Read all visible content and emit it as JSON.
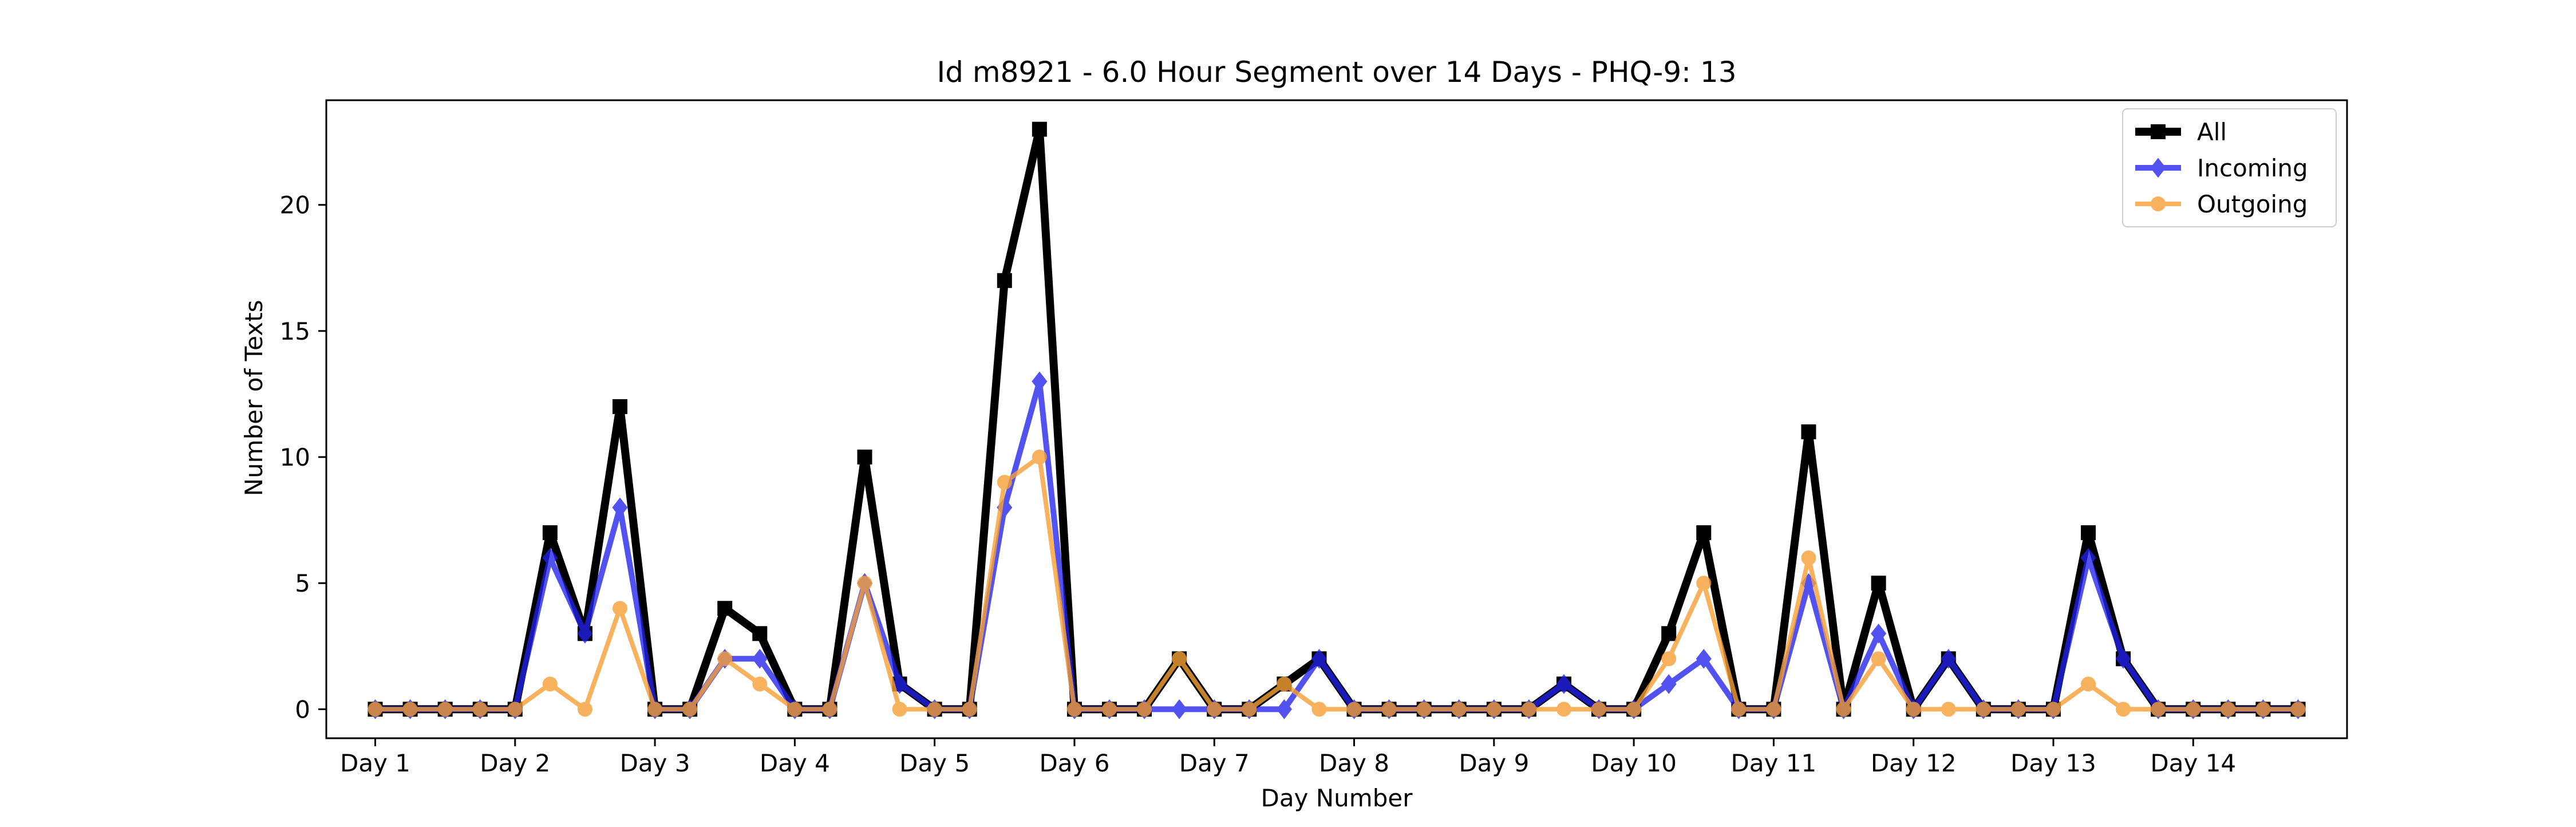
{
  "chart_data": {
    "type": "line",
    "title": "Id m8921 - 6.0 Hour Segment over 14 Days - PHQ-9: 13",
    "xlabel": "Day Number",
    "ylabel": "Number of Texts",
    "x_ticks": [
      "Day 1",
      "Day 2",
      "Day 3",
      "Day 4",
      "Day 5",
      "Day 6",
      "Day 7",
      "Day 8",
      "Day 9",
      "Day 10",
      "Day 11",
      "Day 12",
      "Day 13",
      "Day 14"
    ],
    "y_ticks": [
      0,
      5,
      10,
      15,
      20
    ],
    "ylim": [
      -1.15,
      24.15
    ],
    "xlim": [
      -1.4,
      56.4
    ],
    "segments_per_day": 4,
    "grid": false,
    "legend_position": "top-right",
    "series": [
      {
        "name": "All",
        "color": "#000000",
        "marker": "square",
        "values": [
          0,
          0,
          0,
          0,
          0,
          7,
          3,
          12,
          0,
          0,
          4,
          3,
          0,
          0,
          10,
          1,
          0,
          0,
          17,
          23,
          0,
          0,
          0,
          2,
          0,
          0,
          1,
          2,
          0,
          0,
          0,
          0,
          0,
          0,
          1,
          0,
          0,
          3,
          7,
          0,
          0,
          11,
          0,
          5,
          0,
          2,
          0,
          0,
          0,
          7,
          2,
          0,
          0,
          0,
          0,
          0
        ]
      },
      {
        "name": "Incoming",
        "color": "#2222ee",
        "marker": "diamond",
        "values": [
          0,
          0,
          0,
          0,
          0,
          6,
          3,
          8,
          0,
          0,
          2,
          2,
          0,
          0,
          5,
          1,
          0,
          0,
          8,
          13,
          0,
          0,
          0,
          0,
          0,
          0,
          0,
          2,
          0,
          0,
          0,
          0,
          0,
          0,
          1,
          0,
          0,
          1,
          2,
          0,
          0,
          5,
          0,
          3,
          0,
          2,
          0,
          0,
          0,
          6,
          2,
          0,
          0,
          0,
          0,
          0
        ]
      },
      {
        "name": "Outgoing",
        "color": "#f7a035",
        "marker": "circle",
        "values": [
          0,
          0,
          0,
          0,
          0,
          1,
          0,
          4,
          0,
          0,
          2,
          1,
          0,
          0,
          5,
          0,
          0,
          0,
          9,
          10,
          0,
          0,
          0,
          2,
          0,
          0,
          1,
          0,
          0,
          0,
          0,
          0,
          0,
          0,
          0,
          0,
          0,
          2,
          5,
          0,
          0,
          6,
          0,
          2,
          0,
          0,
          0,
          0,
          0,
          1,
          0,
          0,
          0,
          0,
          0,
          0
        ]
      }
    ]
  }
}
